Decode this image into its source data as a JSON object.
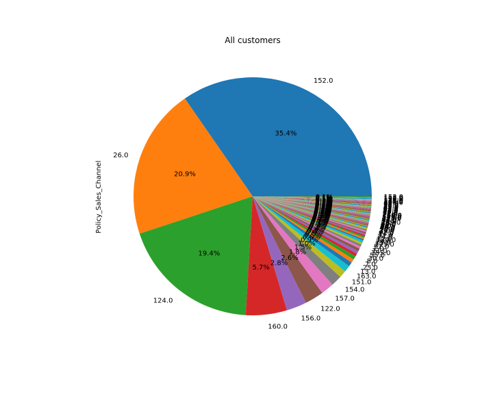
{
  "chart_data": {
    "type": "pie",
    "title": "All customers",
    "ylabel": "Policy_Sales_Channel",
    "start_angle_deg": 0,
    "direction": "counterclockwise",
    "slices": [
      {
        "label": "152.0",
        "percent": 35.4,
        "color": "#1f77b4",
        "show_pct": true
      },
      {
        "label": "26.0",
        "percent": 20.9,
        "color": "#ff7f0e",
        "show_pct": true
      },
      {
        "label": "124.0",
        "percent": 19.4,
        "color": "#2ca02c",
        "show_pct": true
      },
      {
        "label": "160.0",
        "percent": 5.7,
        "color": "#d62728",
        "show_pct": true
      },
      {
        "label": "156.0",
        "percent": 2.8,
        "color": "#9467bd",
        "show_pct": true
      },
      {
        "label": "122.0",
        "percent": 2.6,
        "color": "#8c564b",
        "show_pct": true
      },
      {
        "label": "157.0",
        "percent": 1.8,
        "color": "#e377c2",
        "show_pct": true
      },
      {
        "label": "154.0",
        "percent": 1.5,
        "color": "#7f7f7f",
        "show_pct": true
      },
      {
        "label": "151.0",
        "percent": 1.0,
        "color": "#bcbd22",
        "show_pct": true
      },
      {
        "label": "163.0",
        "percent": 0.9,
        "color": "#17becf",
        "show_pct": true
      },
      {
        "label": "13.0",
        "percent": 0.6,
        "color": "#1f77b4",
        "show_pct": true
      },
      {
        "label": "25.0",
        "percent": 0.5,
        "color": "#ff7f0e",
        "show_pct": true
      },
      {
        "label": "7.0",
        "percent": 0.5,
        "color": "#2ca02c",
        "show_pct": true
      },
      {
        "label": "8.0",
        "percent": 0.4,
        "color": "#d62728",
        "show_pct": true
      },
      {
        "label": "30.0",
        "percent": 0.4,
        "color": "#9467bd",
        "show_pct": true
      },
      {
        "label": "55.0",
        "percent": 0.4,
        "color": "#8c564b",
        "show_pct": true
      },
      {
        "label": "155.0",
        "percent": 0.3,
        "color": "#e377c2",
        "show_pct": true
      },
      {
        "label": "11.0",
        "percent": 0.3,
        "color": "#7f7f7f",
        "show_pct": true
      },
      {
        "label": "1.0",
        "percent": 0.3,
        "color": "#bcbd22",
        "show_pct": true
      },
      {
        "label": "52.0",
        "percent": 0.3,
        "color": "#17becf",
        "show_pct": true
      },
      {
        "label": "125.0",
        "percent": 0.2,
        "color": "#1f77b4",
        "show_pct": true
      },
      {
        "label": "15.0",
        "percent": 0.2,
        "color": "#ff7f0e",
        "show_pct": true
      },
      {
        "label": "29.0",
        "percent": 0.2,
        "color": "#2ca02c",
        "show_pct": true
      },
      {
        "label": "120.0",
        "percent": 0.2,
        "color": "#d62728",
        "show_pct": true
      },
      {
        "label": "12.0",
        "percent": 0.2,
        "color": "#9467bd",
        "show_pct": true
      },
      {
        "label": "24.0",
        "percent": 0.2,
        "color": "#8c564b",
        "show_pct": true
      },
      {
        "label": "31.0",
        "percent": 0.2,
        "color": "#e377c2",
        "show_pct": true
      },
      {
        "label": "14.0",
        "percent": 0.2,
        "color": "#7f7f7f",
        "show_pct": true
      },
      {
        "label": "61.0",
        "percent": 0.2,
        "color": "#bcbd22",
        "show_pct": true
      },
      {
        "label": "3.0",
        "percent": 0.1,
        "color": "#17becf",
        "show_pct": true
      },
      {
        "label": "16.0",
        "percent": 0.1,
        "color": "#1f77b4",
        "show_pct": true
      },
      {
        "label": "19.0",
        "percent": 0.1,
        "color": "#ff7f0e",
        "show_pct": true
      },
      {
        "label": "35.0",
        "percent": 0.1,
        "color": "#2ca02c",
        "show_pct": true
      },
      {
        "label": "45.0",
        "percent": 0.1,
        "color": "#d62728",
        "show_pct": true
      },
      {
        "label": "60.0",
        "percent": 0.1,
        "color": "#9467bd",
        "show_pct": true
      },
      {
        "label": "4.0",
        "percent": 0.1,
        "color": "#8c564b",
        "show_pct": true
      },
      {
        "label": "9.0",
        "percent": 0.1,
        "color": "#e377c2",
        "show_pct": true
      },
      {
        "label": "10.0",
        "percent": 0.1,
        "color": "#7f7f7f",
        "show_pct": true
      },
      {
        "label": "42.0",
        "percent": 0.1,
        "color": "#bcbd22",
        "show_pct": true
      },
      {
        "label": "88.0",
        "percent": 0.1,
        "color": "#17becf",
        "show_pct": true
      },
      {
        "label": "109.0",
        "percent": 0.1,
        "color": "#1f77b4",
        "show_pct": true
      },
      {
        "label": "22.0",
        "percent": 0.1,
        "color": "#ff7f0e",
        "show_pct": true
      },
      {
        "label": "36.0",
        "percent": 0.1,
        "color": "#2ca02c",
        "show_pct": true
      },
      {
        "label": "47.0",
        "percent": 0.1,
        "color": "#d62728",
        "show_pct": true
      },
      {
        "label": "93.0",
        "percent": 0.1,
        "color": "#9467bd",
        "show_pct": true
      },
      {
        "label": "113.0",
        "percent": 0.1,
        "color": "#8c564b",
        "show_pct": true
      },
      {
        "label": "128.0",
        "percent": 0.1,
        "color": "#e377c2",
        "show_pct": true
      },
      {
        "label": "131.0",
        "percent": 0.1,
        "color": "#7f7f7f",
        "show_pct": true
      },
      {
        "label": "150.0",
        "percent": 0.1,
        "color": "#bcbd22",
        "show_pct": true
      },
      {
        "label": "158.0",
        "percent": 0.1,
        "color": "#17becf",
        "show_pct": true
      },
      {
        "label": "23.0",
        "percent": 0.1,
        "color": "#1f77b4",
        "show_pct": true
      },
      {
        "label": "27.0",
        "percent": 0.1,
        "color": "#ff7f0e",
        "show_pct": true
      },
      {
        "label": "32.0",
        "percent": 0.1,
        "color": "#2ca02c",
        "show_pct": true
      },
      {
        "label": "39.0",
        "percent": 0.1,
        "color": "#d62728",
        "show_pct": true
      },
      {
        "label": "44.0",
        "percent": 0.1,
        "color": "#9467bd",
        "show_pct": true
      },
      {
        "label": "54.0",
        "percent": 0.1,
        "color": "#8c564b",
        "show_pct": true
      },
      {
        "label": "58.0",
        "percent": 0.1,
        "color": "#e377c2",
        "show_pct": true
      },
      {
        "label": "63.0",
        "percent": 0.1,
        "color": "#7f7f7f",
        "show_pct": true
      },
      {
        "label": "64.0",
        "percent": 0.1,
        "color": "#bcbd22",
        "show_pct": true
      },
      {
        "label": "65.0",
        "percent": 0.1,
        "color": "#17becf",
        "show_pct": true
      },
      {
        "label": "73.0",
        "percent": 0.1,
        "color": "#1f77b4",
        "show_pct": true
      },
      {
        "label": "86.0",
        "percent": 0.1,
        "color": "#ff7f0e",
        "show_pct": true
      },
      {
        "label": "91.0",
        "percent": 0.1,
        "color": "#2ca02c",
        "show_pct": true
      },
      {
        "label": "94.0",
        "percent": 0.1,
        "color": "#d62728",
        "show_pct": true
      },
      {
        "label": "98.0",
        "percent": 0.1,
        "color": "#9467bd",
        "show_pct": true
      },
      {
        "label": "106.0",
        "percent": 0.1,
        "color": "#8c564b",
        "show_pct": true
      },
      {
        "label": "107.0",
        "percent": 0.1,
        "color": "#e377c2",
        "show_pct": true
      },
      {
        "label": "116.0",
        "percent": 0.1,
        "color": "#7f7f7f",
        "show_pct": true
      },
      {
        "label": "121.0",
        "percent": 0.1,
        "color": "#bcbd22",
        "show_pct": true
      },
      {
        "label": "127.0",
        "percent": 0.1,
        "color": "#17becf",
        "show_pct": true
      },
      {
        "label": "136.0",
        "percent": 0.1,
        "color": "#1f77b4",
        "show_pct": true
      },
      {
        "label": "145.0",
        "percent": 0.1,
        "color": "#ff7f0e",
        "show_pct": true
      },
      {
        "label": "153.0",
        "percent": 0.1,
        "color": "#2ca02c",
        "show_pct": true
      }
    ]
  }
}
